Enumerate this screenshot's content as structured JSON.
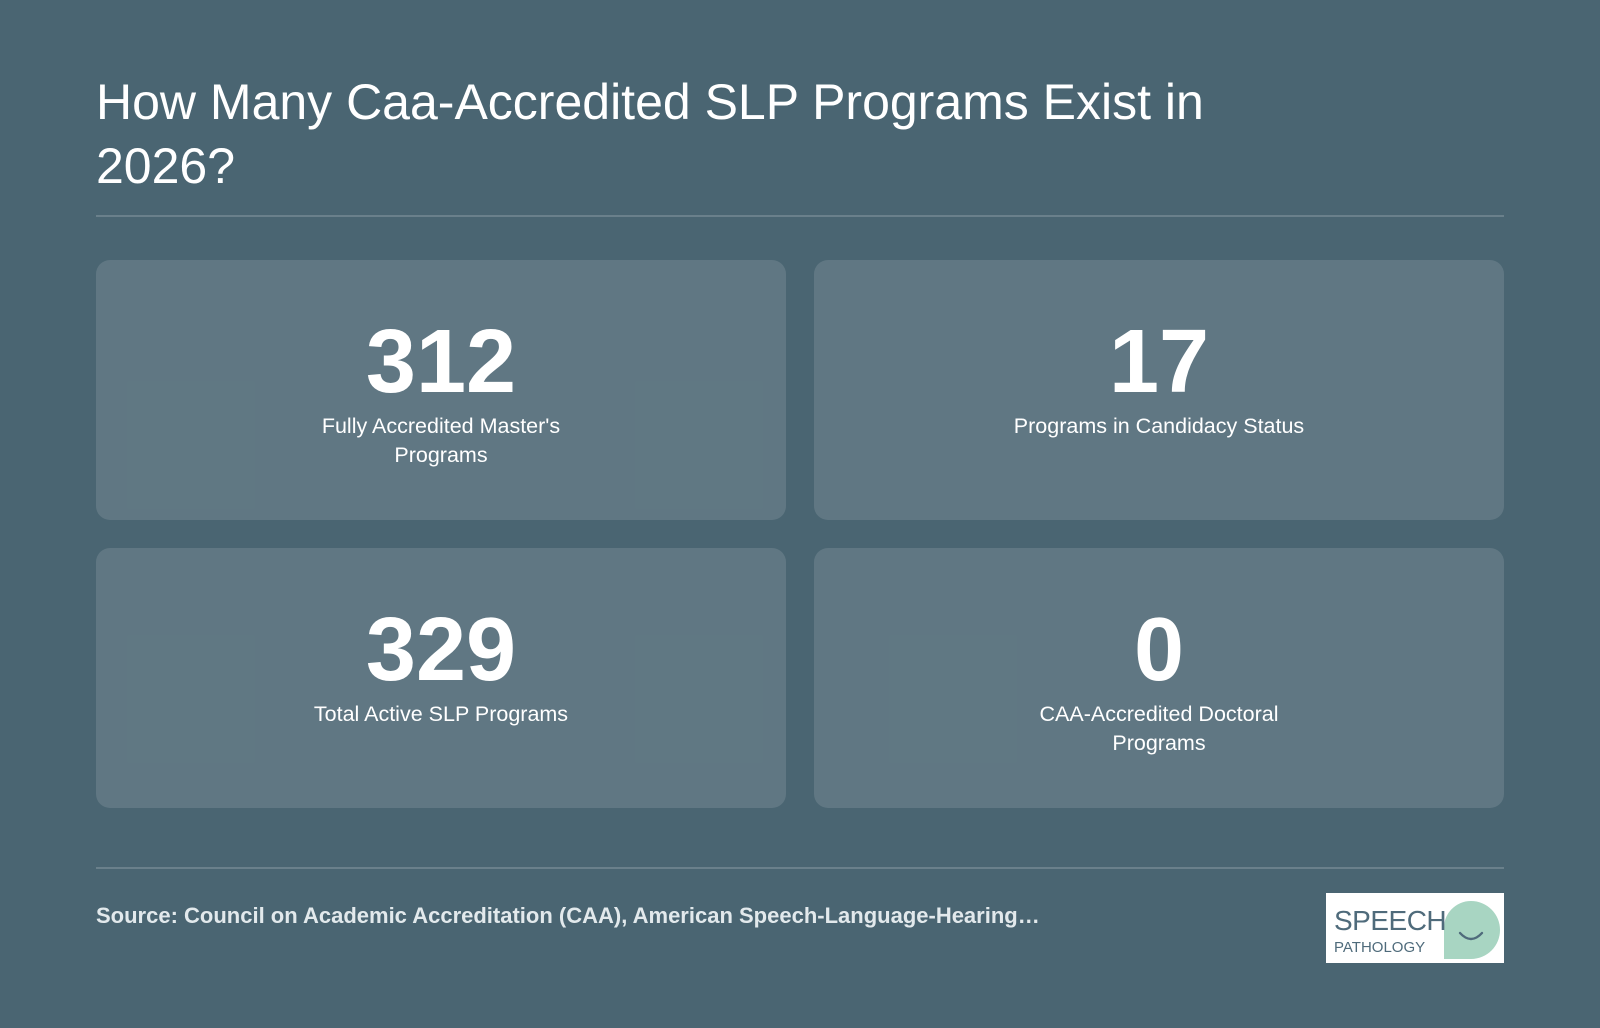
{
  "title": "How Many Caa-Accredited SLP Programs Exist in 2026?",
  "stats": [
    {
      "value": "312",
      "label": "Fully Accredited Master's Programs"
    },
    {
      "value": "17",
      "label": "Programs in Candidacy Status"
    },
    {
      "value": "329",
      "label": "Total Active SLP Programs"
    },
    {
      "value": "0",
      "label": "CAA-Accredited Doctoral Programs"
    }
  ],
  "source": "Source: Council on Academic Accreditation (CAA), American Speech-Language-Hearing…",
  "logo": {
    "line1": "SPEECH",
    "line2": "PATHOLOGY",
    "accent_color": "#a8d5c2",
    "icon": "speech-bubble-smile-icon"
  },
  "colors": {
    "background": "#4a6572",
    "card": "#5b7380",
    "text": "#ffffff"
  }
}
